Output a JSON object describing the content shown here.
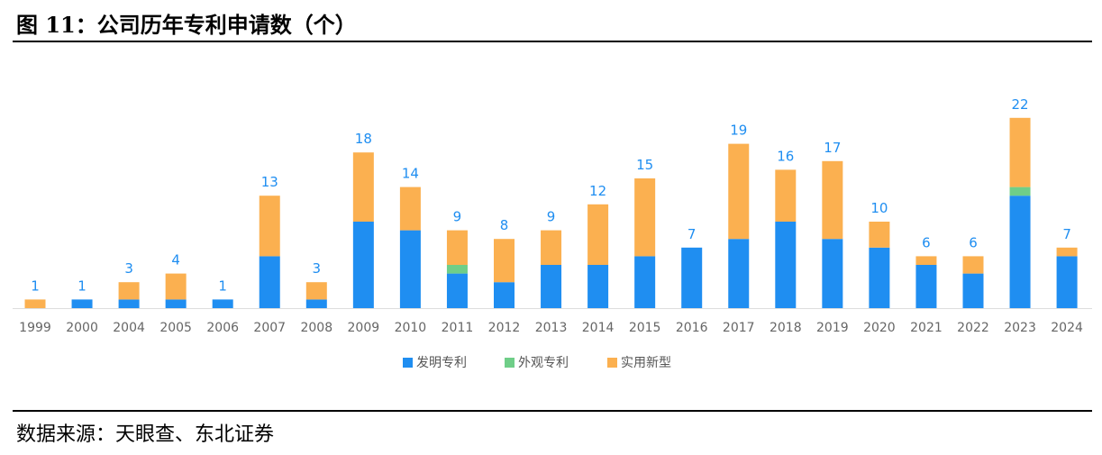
{
  "header": {
    "title": "图 11：公司历年专利申请数（个）"
  },
  "footer": {
    "source": "数据来源：天眼查、东北证券"
  },
  "colors": {
    "invention": "#1f8ef1",
    "design": "#6fce88",
    "utility": "#fbb050",
    "label": "#1f8ef1",
    "axis": "#dddddd"
  },
  "chart_data": {
    "type": "bar",
    "stacked": true,
    "categories": [
      "1999",
      "2000",
      "2004",
      "2005",
      "2006",
      "2007",
      "2008",
      "2009",
      "2010",
      "2011",
      "2012",
      "2013",
      "2014",
      "2015",
      "2016",
      "2017",
      "2018",
      "2019",
      "2020",
      "2021",
      "2022",
      "2023",
      "2024"
    ],
    "series": [
      {
        "name": "发明专利",
        "values": [
          0,
          1,
          1,
          1,
          1,
          6,
          1,
          10,
          9,
          4,
          3,
          5,
          5,
          6,
          7,
          8,
          10,
          8,
          7,
          5,
          4,
          13,
          6
        ]
      },
      {
        "name": "外观专利",
        "values": [
          0,
          0,
          0,
          0,
          0,
          0,
          0,
          0,
          0,
          1,
          0,
          0,
          0,
          0,
          0,
          0,
          0,
          0,
          0,
          0,
          0,
          1,
          0
        ]
      },
      {
        "name": "实用新型",
        "values": [
          1,
          0,
          2,
          3,
          0,
          7,
          2,
          8,
          5,
          4,
          5,
          4,
          7,
          9,
          0,
          11,
          6,
          9,
          3,
          1,
          2,
          8,
          1
        ]
      }
    ],
    "totals": [
      1,
      1,
      3,
      4,
      1,
      13,
      3,
      18,
      14,
      9,
      8,
      9,
      12,
      15,
      7,
      19,
      16,
      17,
      10,
      6,
      6,
      22,
      7
    ],
    "ylim": [
      0,
      22
    ],
    "legend_position": "bottom",
    "grid": false
  }
}
